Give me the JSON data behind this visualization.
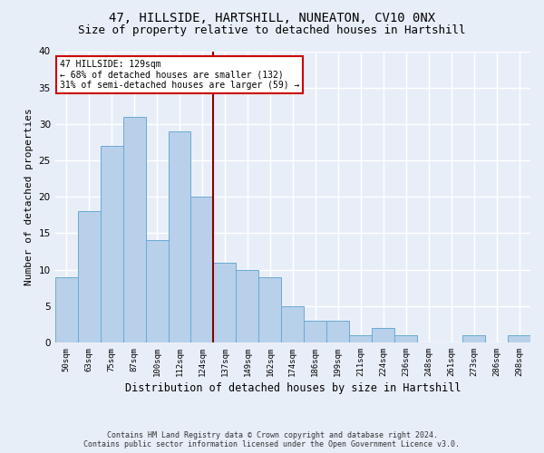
{
  "title1": "47, HILLSIDE, HARTSHILL, NUNEATON, CV10 0NX",
  "title2": "Size of property relative to detached houses in Hartshill",
  "xlabel": "Distribution of detached houses by size in Hartshill",
  "ylabel": "Number of detached properties",
  "footer1": "Contains HM Land Registry data © Crown copyright and database right 2024.",
  "footer2": "Contains public sector information licensed under the Open Government Licence v3.0.",
  "categories": [
    "50sqm",
    "63sqm",
    "75sqm",
    "87sqm",
    "100sqm",
    "112sqm",
    "124sqm",
    "137sqm",
    "149sqm",
    "162sqm",
    "174sqm",
    "186sqm",
    "199sqm",
    "211sqm",
    "224sqm",
    "236sqm",
    "248sqm",
    "261sqm",
    "273sqm",
    "286sqm",
    "298sqm"
  ],
  "values": [
    9,
    18,
    27,
    31,
    14,
    29,
    20,
    11,
    10,
    9,
    5,
    3,
    3,
    1,
    2,
    1,
    0,
    0,
    1,
    0,
    1
  ],
  "bar_color": "#b8d0ea",
  "bar_edge_color": "#6aaad4",
  "highlight_index": 6,
  "highlight_line_color": "#8B0000",
  "ylim": [
    0,
    40
  ],
  "yticks": [
    0,
    5,
    10,
    15,
    20,
    25,
    30,
    35,
    40
  ],
  "annotation_line1": "47 HILLSIDE: 129sqm",
  "annotation_line2": "← 68% of detached houses are smaller (132)",
  "annotation_line3": "31% of semi-detached houses are larger (59) →",
  "annotation_box_color": "#ffffff",
  "annotation_box_edgecolor": "#cc0000",
  "bg_color": "#e8eef8",
  "plot_bg_color": "#e8eef8",
  "grid_color": "#ffffff",
  "title1_fontsize": 10,
  "title2_fontsize": 9,
  "xlabel_fontsize": 8.5,
  "ylabel_fontsize": 8
}
